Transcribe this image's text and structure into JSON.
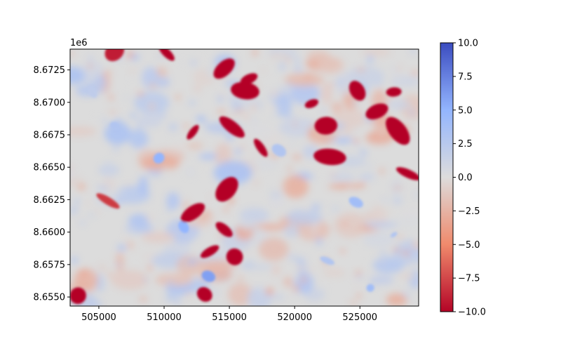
{
  "chart_data": {
    "type": "heatmap",
    "title": "",
    "xlabel": "",
    "ylabel": "",
    "x_range": [
      502800,
      529500
    ],
    "y_range": [
      8654300,
      8674100
    ],
    "x_ticks": [
      505000,
      510000,
      515000,
      520000,
      525000
    ],
    "x_tick_labels": [
      "505000",
      "510000",
      "515000",
      "520000",
      "525000"
    ],
    "y_ticks": [
      8655000,
      8657500,
      8660000,
      8662500,
      8665000,
      8667500,
      8670000,
      8672500
    ],
    "y_tick_labels": [
      "8.6550",
      "8.6575",
      "8.6600",
      "8.6625",
      "8.6650",
      "8.6675",
      "8.6700",
      "8.6725"
    ],
    "y_offset_label": "1e6",
    "colormap": "coolwarm_r",
    "colormap_stops": [
      "#b40426",
      "#f08a6c",
      "#dddcdc",
      "#93b5fe",
      "#3b4cc0"
    ],
    "value_range": [
      -10,
      10
    ],
    "colorbar_ticks": [
      10,
      7.5,
      5,
      2.5,
      0,
      -2.5,
      -5,
      -7.5,
      -10
    ],
    "colorbar_tick_labels": [
      "10.0",
      "7.5",
      "5.0",
      "2.5",
      "0.0",
      "−2.5",
      "−5.0",
      "−7.5",
      "−10.0"
    ],
    "grid": false,
    "features_strong_negative": [
      {
        "x": 514600,
        "y": 8672600,
        "value": -10
      },
      {
        "x": 516500,
        "y": 8671800,
        "value": -10
      },
      {
        "x": 516200,
        "y": 8670900,
        "value": -10
      },
      {
        "x": 521300,
        "y": 8669900,
        "value": -10
      },
      {
        "x": 522400,
        "y": 8668200,
        "value": -10
      },
      {
        "x": 517400,
        "y": 8666500,
        "value": -10
      },
      {
        "x": 515200,
        "y": 8668100,
        "value": -10
      },
      {
        "x": 512200,
        "y": 8667700,
        "value": -10
      },
      {
        "x": 514800,
        "y": 8663300,
        "value": -10
      },
      {
        "x": 512200,
        "y": 8661500,
        "value": -10
      },
      {
        "x": 514600,
        "y": 8660200,
        "value": -10
      },
      {
        "x": 515400,
        "y": 8658100,
        "value": -10
      },
      {
        "x": 513500,
        "y": 8658500,
        "value": -10
      },
      {
        "x": 513100,
        "y": 8655200,
        "value": -10
      },
      {
        "x": 503400,
        "y": 8655100,
        "value": -10
      },
      {
        "x": 524800,
        "y": 8670900,
        "value": -10
      },
      {
        "x": 527600,
        "y": 8670800,
        "value": -10
      },
      {
        "x": 527900,
        "y": 8667800,
        "value": -10
      },
      {
        "x": 526300,
        "y": 8669300,
        "value": -10
      },
      {
        "x": 528700,
        "y": 8664500,
        "value": -10
      },
      {
        "x": 522700,
        "y": 8665800,
        "value": -10
      },
      {
        "x": 510200,
        "y": 8673800,
        "value": -10
      },
      {
        "x": 505700,
        "y": 8662400,
        "value": -8
      },
      {
        "x": 506200,
        "y": 8673900,
        "value": -9
      }
    ],
    "features_positive": [
      {
        "x": 509600,
        "y": 8665700,
        "value": 5
      },
      {
        "x": 511500,
        "y": 8660400,
        "value": 5
      },
      {
        "x": 524700,
        "y": 8662300,
        "value": 4
      },
      {
        "x": 522500,
        "y": 8657800,
        "value": 3
      },
      {
        "x": 525800,
        "y": 8655700,
        "value": 4
      },
      {
        "x": 506200,
        "y": 8668200,
        "value": 3
      },
      {
        "x": 513400,
        "y": 8656600,
        "value": 6
      },
      {
        "x": 518800,
        "y": 8666300,
        "value": 3
      },
      {
        "x": 527600,
        "y": 8659800,
        "value": 3
      },
      {
        "x": 504500,
        "y": 8670800,
        "value": 2
      }
    ]
  }
}
